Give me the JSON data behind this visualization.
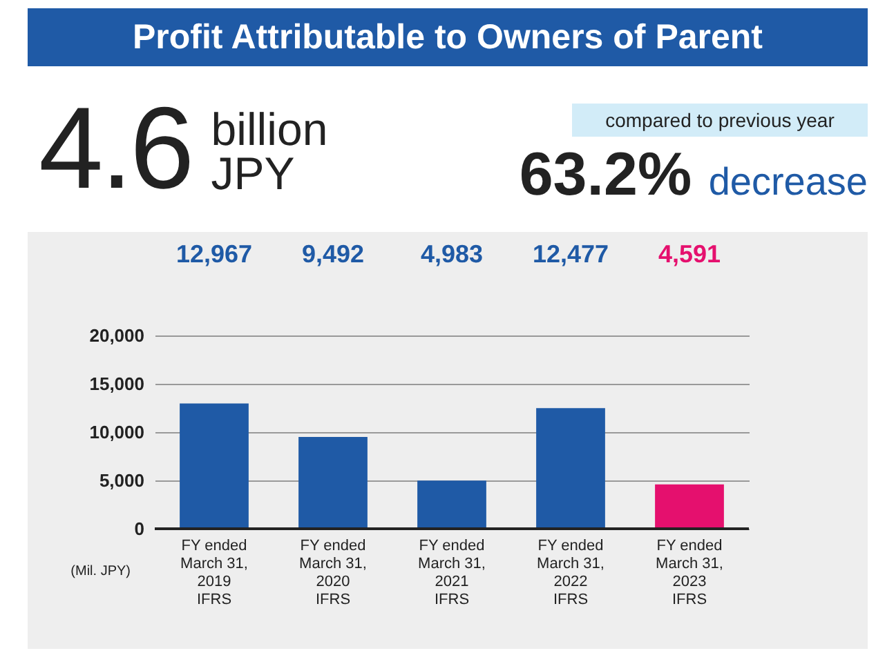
{
  "chart_data": {
    "type": "bar",
    "title": "Profit Attributable to Owners of Parent",
    "annotations": [
      "4.6",
      "billion",
      "JPY",
      "compared to previous year",
      "63.2%",
      "decrease"
    ],
    "categories": [
      "FY ended\nMarch 31,\n2019\nIFRS",
      "FY ended\nMarch 31,\n2020\nIFRS",
      "FY ended\nMarch 31,\n2021\nIFRS",
      "FY ended\nMarch 31,\n2022\nIFRS",
      "FY ended\nMarch 31,\n2023\nIFRS"
    ],
    "values": [
      12967,
      9492,
      4983,
      12477,
      4591
    ],
    "colors": [
      "#1f5aa6",
      "#1f5aa6",
      "#1f5aa6",
      "#1f5aa6",
      "#e5106e"
    ],
    "value_labels": [
      "12,967",
      "9,492",
      "4,983",
      "12,477",
      "4,591"
    ],
    "ylabel": "(Mil. JPY)",
    "ylim": [
      0,
      20000
    ],
    "yticks": [
      0,
      {
        "value": 5000,
        "label": "5,000"
      },
      {
        "value": 10000,
        "label": "10,000"
      },
      {
        "value": 15000,
        "label": "15,000"
      },
      {
        "value": 20000,
        "label": "20,000"
      }
    ],
    "grid": "y"
  }
}
